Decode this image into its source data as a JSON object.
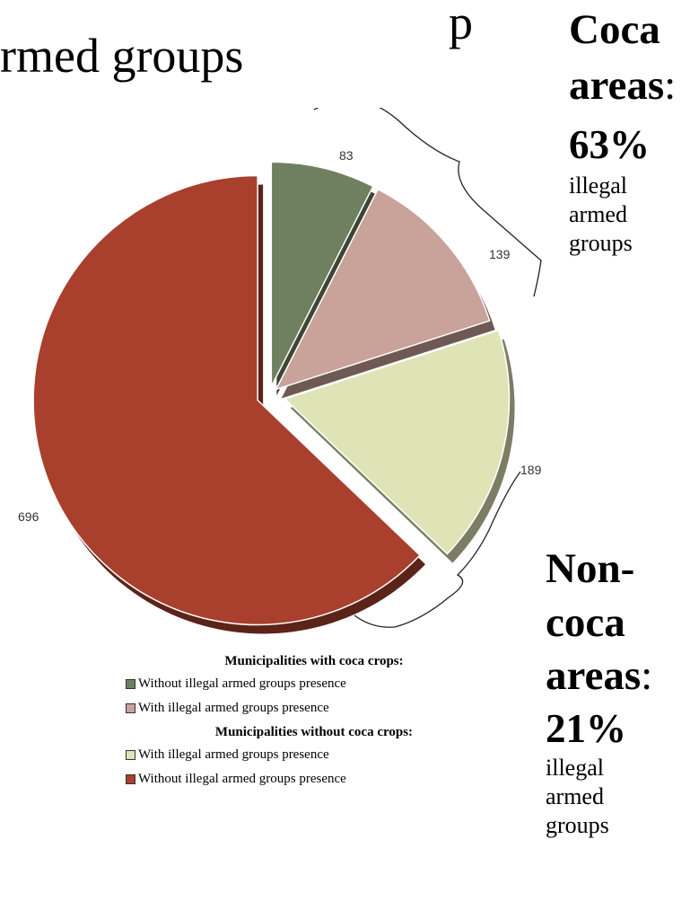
{
  "title_fragment": {
    "line1": "p",
    "line2": "rmed groups"
  },
  "coca_callout": {
    "heading_line1": "Coca",
    "heading_line2": "areas",
    "colon": ":",
    "percent": "63%",
    "desc_lines": [
      "illegal",
      "armed",
      "groups"
    ]
  },
  "noncoca_callout": {
    "heading_line1": "Non-",
    "heading_line2": "coca",
    "heading_line3": "areas",
    "colon": ":",
    "percent": "21%",
    "desc_lines": [
      "illegal",
      "armed",
      "groups"
    ]
  },
  "legend": {
    "group1_heading": "Municipalities with coca crops:",
    "group1_items": [
      {
        "label": "Without illegal armed groups presence",
        "color": "#6f8060"
      },
      {
        "label": "With illegal armed groups presence",
        "color": "#c9a29a"
      }
    ],
    "group2_heading": "Municipalities without coca crops:",
    "group2_items": [
      {
        "label": "With illegal armed groups presence",
        "color": "#dfe4b6"
      },
      {
        "label": "Without illegal armed groups presence",
        "color": "#a8402d"
      }
    ]
  },
  "chart_data": {
    "type": "pie",
    "slices": [
      {
        "label": "83",
        "value": 83,
        "color": "#6f8060"
      },
      {
        "label": "139",
        "value": 139,
        "color": "#c9a29a"
      },
      {
        "label": "189",
        "value": 189,
        "color": "#dfe4b6"
      },
      {
        "label": "696",
        "value": 696,
        "color": "#a8402d"
      }
    ]
  }
}
